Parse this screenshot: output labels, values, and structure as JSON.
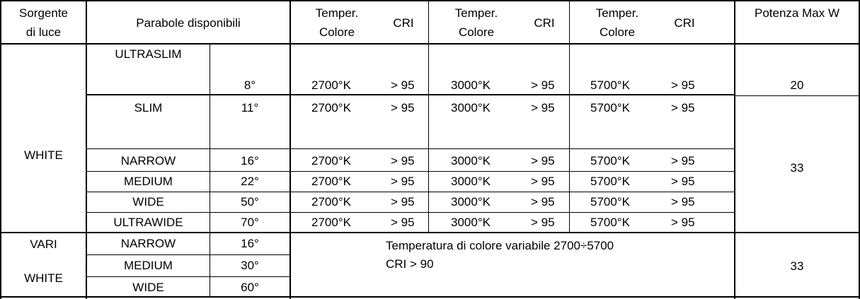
{
  "header": {
    "source_line1": "Sorgente",
    "source_line2": "di luce",
    "reflectors": "Parabole disponibili",
    "temp_line1": "Temper.",
    "temp_line2": "Colore",
    "cri": "CRI",
    "power": "Potenza Max W"
  },
  "white": {
    "label": "WHITE",
    "rows": [
      {
        "name": "ULTRASLIM",
        "angle": "8°",
        "t1": "2700°K",
        "c1": "> 95",
        "t2": "3000°K",
        "c2": "> 95",
        "t3": "5700°K",
        "c3": "> 95"
      },
      {
        "name": "SLIM",
        "angle": "11°",
        "t1": "2700°K",
        "c1": "> 95",
        "t2": "3000°K",
        "c2": "> 95",
        "t3": "5700°K",
        "c3": "> 95"
      },
      {
        "name": "NARROW",
        "angle": "16°",
        "t1": "2700°K",
        "c1": "> 95",
        "t2": "3000°K",
        "c2": "> 95",
        "t3": "5700°K",
        "c3": "> 95"
      },
      {
        "name": "MEDIUM",
        "angle": "22°",
        "t1": "2700°K",
        "c1": "> 95",
        "t2": "3000°K",
        "c2": "> 95",
        "t3": "5700°K",
        "c3": "> 95"
      },
      {
        "name": "WIDE",
        "angle": "50°",
        "t1": "2700°K",
        "c1": "> 95",
        "t2": "3000°K",
        "c2": "> 95",
        "t3": "5700°K",
        "c3": "> 95"
      },
      {
        "name": "ULTRAWIDE",
        "angle": "70°",
        "t1": "2700°K",
        "c1": "> 95",
        "t2": "3000°K",
        "c2": "> 95",
        "t3": "5700°K",
        "c3": "> 95"
      }
    ],
    "power_ultraslim": "20",
    "power_rest": "33"
  },
  "vari": {
    "label_line1": "VARI",
    "label_line2": "WHITE",
    "rows": [
      {
        "name": "NARROW",
        "angle": "16°"
      },
      {
        "name": "MEDIUM",
        "angle": "30°"
      },
      {
        "name": "WIDE",
        "angle": "60°"
      }
    ],
    "note_line1": "Temperatura di colore variabile 2700÷5700",
    "note_line2": "CRI > 90",
    "power": "33"
  }
}
